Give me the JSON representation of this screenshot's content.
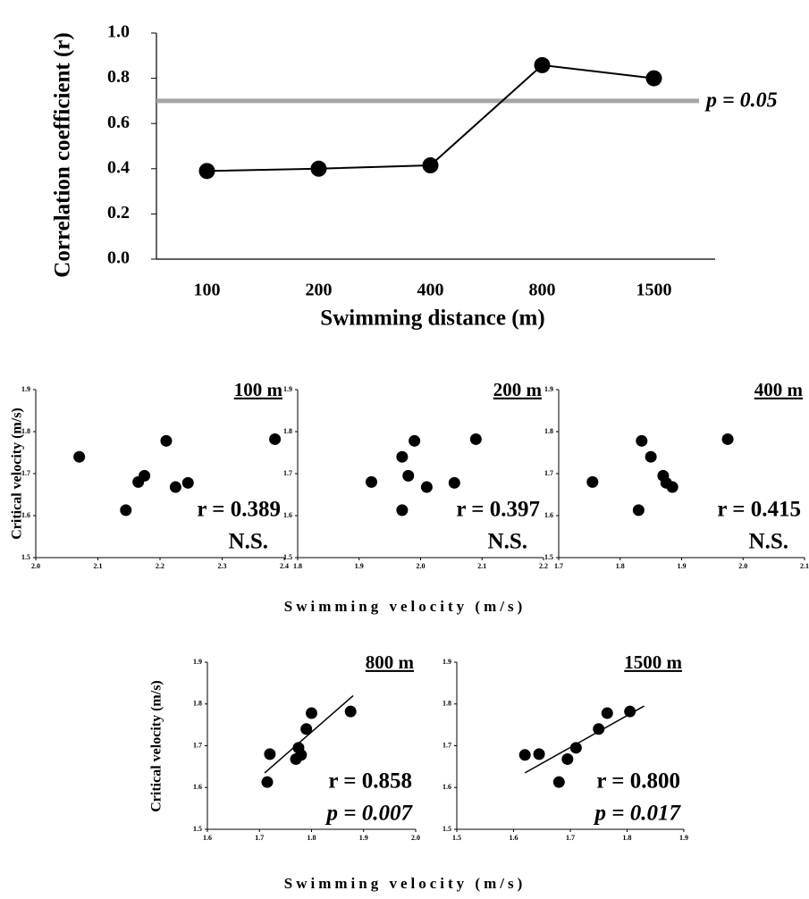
{
  "chart_data": [
    {
      "type": "line",
      "ylabel": "Correlation coefficient (r)",
      "xlabel": "Swimming distance (m)",
      "categories": [
        "100",
        "200",
        "400",
        "800",
        "1500"
      ],
      "values": [
        0.39,
        0.4,
        0.415,
        0.858,
        0.8
      ],
      "color": "#000000",
      "ylim": [
        0,
        1.0
      ],
      "yticks": [
        {
          "value": 0,
          "label": "0.0"
        },
        0.2,
        0.4,
        0.6,
        0.8,
        {
          "value": 1.0,
          "label": "1.0"
        }
      ],
      "threshold": {
        "value": 0.7,
        "label": "p = 0.05",
        "color": "#a6a6a6"
      }
    },
    {
      "type": "scatter",
      "title": "100 m",
      "ylabel": "Critical velocity (m/s)",
      "x": [
        2.07,
        2.145,
        2.165,
        2.175,
        2.21,
        2.225,
        2.245,
        2.385
      ],
      "y": [
        1.74,
        1.613,
        1.68,
        1.695,
        1.778,
        1.668,
        1.678,
        1.782
      ],
      "xlim": [
        2.0,
        2.4
      ],
      "xticks": [
        {
          "value": 2.0,
          "label": "2.0"
        },
        2.1,
        2.2,
        2.3,
        2.4
      ],
      "ylim": [
        1.5,
        1.9
      ],
      "yticks": [
        1.5,
        1.6,
        1.7,
        1.8,
        1.9
      ],
      "annotations": [
        "r = 0.389",
        "N.S."
      ]
    },
    {
      "type": "scatter",
      "title": "200 m",
      "xlabel": "Swimming velocity (m/s)",
      "x": [
        1.92,
        1.97,
        1.97,
        1.98,
        1.99,
        2.01,
        2.055,
        2.09
      ],
      "y": [
        1.68,
        1.74,
        1.613,
        1.695,
        1.778,
        1.668,
        1.678,
        1.782
      ],
      "xlim": [
        1.8,
        2.2
      ],
      "xticks": [
        1.8,
        1.9,
        {
          "value": 2.0,
          "label": "2.0"
        },
        2.1,
        2.2
      ],
      "ylim": [
        1.5,
        1.9
      ],
      "yticks": [
        1.5,
        1.6,
        1.7,
        1.8,
        1.9
      ],
      "annotations": [
        "r = 0.397",
        "N.S."
      ]
    },
    {
      "type": "scatter",
      "title": "400 m",
      "x": [
        1.755,
        1.83,
        1.835,
        1.85,
        1.87,
        1.875,
        1.885,
        1.975
      ],
      "y": [
        1.68,
        1.613,
        1.778,
        1.74,
        1.695,
        1.678,
        1.668,
        1.782
      ],
      "xlim": [
        1.7,
        2.1
      ],
      "xticks": [
        1.7,
        1.8,
        1.9,
        {
          "value": 2.0,
          "label": "2.0"
        },
        2.1
      ],
      "ylim": [
        1.5,
        1.9
      ],
      "yticks": [
        1.5,
        1.6,
        1.7,
        1.8,
        1.9
      ],
      "annotations": [
        "r = 0.415",
        "N.S."
      ]
    },
    {
      "type": "scatter",
      "title": "800 m",
      "ylabel": "Critical velocity (m/s)",
      "xlabel": "Swimming velocity (m/s)",
      "x": [
        1.715,
        1.72,
        1.77,
        1.775,
        1.79,
        1.8,
        1.875,
        1.78
      ],
      "y": [
        1.613,
        1.68,
        1.668,
        1.695,
        1.74,
        1.778,
        1.782,
        1.678
      ],
      "xlim": [
        1.6,
        2.0
      ],
      "xticks": [
        1.6,
        1.7,
        1.8,
        1.9,
        {
          "value": 2.0,
          "label": "2.0"
        }
      ],
      "ylim": [
        1.5,
        1.9
      ],
      "yticks": [
        1.5,
        1.6,
        1.7,
        1.8,
        1.9
      ],
      "fit": {
        "x": [
          1.71,
          1.88
        ],
        "y": [
          1.635,
          1.82
        ]
      },
      "annotations": [
        "r = 0.858",
        "p = 0.007"
      ]
    },
    {
      "type": "scatter",
      "title": "1500 m",
      "x": [
        1.62,
        1.645,
        1.68,
        1.695,
        1.71,
        1.75,
        1.765,
        1.805
      ],
      "y": [
        1.678,
        1.68,
        1.613,
        1.668,
        1.695,
        1.74,
        1.778,
        1.782
      ],
      "xlim": [
        1.5,
        1.9
      ],
      "xticks": [
        1.5,
        1.6,
        1.7,
        1.8,
        1.9
      ],
      "ylim": [
        1.5,
        1.9
      ],
      "yticks": [
        1.5,
        1.6,
        1.7,
        1.8,
        1.9
      ],
      "fit": {
        "x": [
          1.62,
          1.83
        ],
        "y": [
          1.635,
          1.795
        ]
      },
      "annotations": [
        "r = 0.800",
        "p = 0.017"
      ]
    }
  ]
}
